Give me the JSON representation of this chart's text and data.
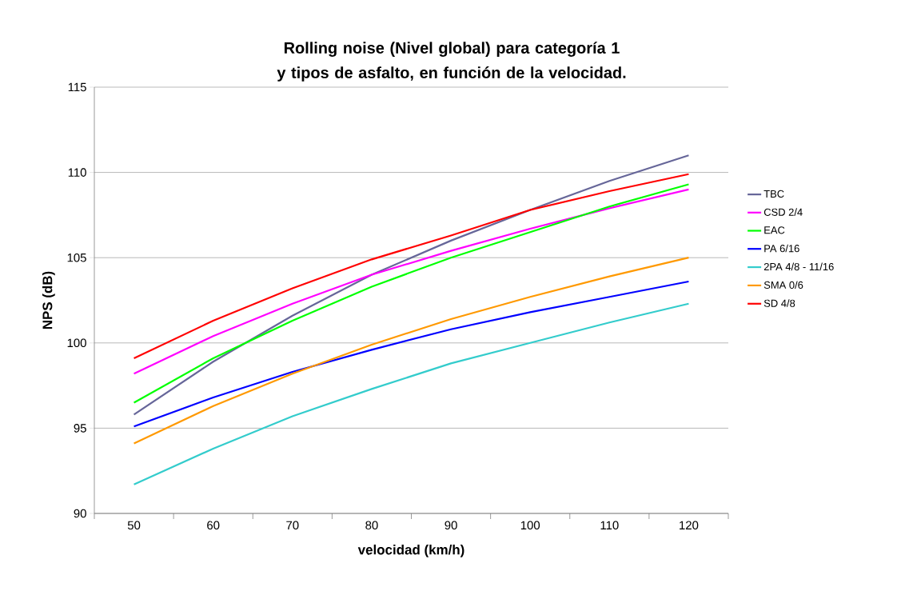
{
  "chart_data": {
    "type": "line",
    "title": "Rolling noise (Nivel global) para categoría 1 y tipos de asfalto, en función de la velocidad.",
    "xlabel": "velocidad (km/h)",
    "ylabel": "NPS (dB)",
    "categories": [
      "50",
      "60",
      "70",
      "80",
      "90",
      "100",
      "110",
      "120"
    ],
    "ylim": [
      90,
      115
    ],
    "yticks": [
      90,
      95,
      100,
      105,
      110,
      115
    ],
    "grid": "y",
    "legend": "right",
    "marker": "none",
    "line_style": "solid",
    "series": [
      {
        "name": "TBC",
        "color": "#666699",
        "values": [
          95.8,
          98.9,
          101.6,
          104.0,
          106.0,
          107.8,
          109.5,
          111.0
        ]
      },
      {
        "name": "CSD 2/4",
        "color": "#ff00ff",
        "values": [
          98.2,
          100.4,
          102.3,
          104.0,
          105.4,
          106.7,
          107.9,
          109.0
        ]
      },
      {
        "name": "EAC",
        "color": "#00ff00",
        "values": [
          96.5,
          99.1,
          101.3,
          103.3,
          105.0,
          106.5,
          108.0,
          109.3
        ]
      },
      {
        "name": "PA 6/16",
        "color": "#0000ff",
        "values": [
          95.1,
          96.8,
          98.3,
          99.6,
          100.8,
          101.8,
          102.7,
          103.6
        ]
      },
      {
        "name": "2PA 4/8 - 11/16",
        "color": "#33cccc",
        "values": [
          91.7,
          93.8,
          95.7,
          97.3,
          98.8,
          100.0,
          101.2,
          102.3
        ]
      },
      {
        "name": "SMA 0/6",
        "color": "#ff9900",
        "values": [
          94.1,
          96.3,
          98.2,
          99.9,
          101.4,
          102.7,
          103.9,
          105.0
        ]
      },
      {
        "name": "SD 4/8",
        "color": "#ff0000",
        "values": [
          99.1,
          101.3,
          103.2,
          104.9,
          106.3,
          107.8,
          108.9,
          109.9
        ]
      }
    ]
  }
}
